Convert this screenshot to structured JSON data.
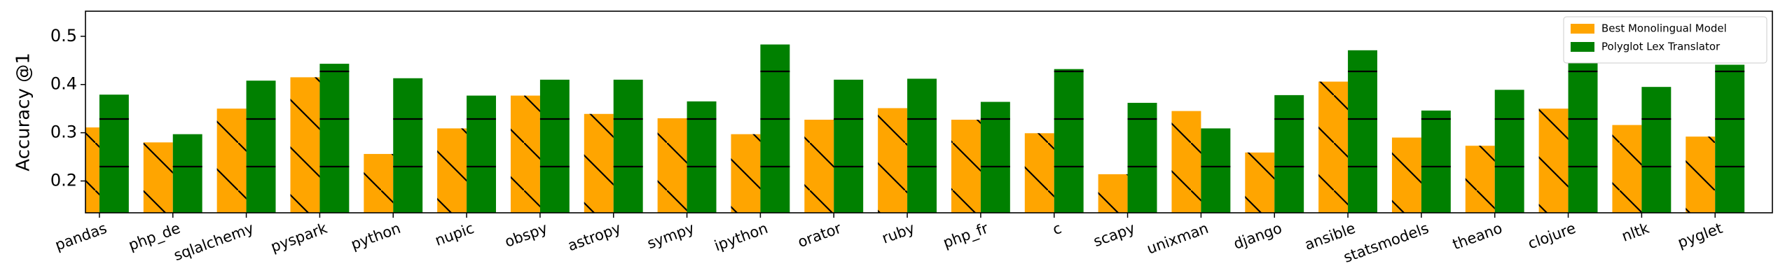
{
  "chart_data": {
    "type": "bar",
    "y_label": "Accuracy @1",
    "categories": [
      "pandas",
      "php_de",
      "sqlalchemy",
      "pyspark",
      "python",
      "nupic",
      "obspy",
      "astropy",
      "sympy",
      "ipython",
      "orator",
      "ruby",
      "php_fr",
      "c",
      "scapy",
      "unixman",
      "django",
      "ansible",
      "statsmodels",
      "theano",
      "clojure",
      "nltk",
      "pyglet"
    ],
    "series": [
      {
        "name": "Best Monolingual Model",
        "color": "#ffa500",
        "hatch": "\\",
        "values": [
          0.311,
          0.28,
          0.35,
          0.415,
          0.256,
          0.309,
          0.377,
          0.339,
          0.33,
          0.297,
          0.327,
          0.351,
          0.327,
          0.299,
          0.214,
          0.345,
          0.259,
          0.406,
          0.29,
          0.273,
          0.35,
          0.316,
          0.292
        ]
      },
      {
        "name": "Polyglot Lex Translator",
        "color": "#008000",
        "hatch": "-",
        "values": [
          0.379,
          0.297,
          0.408,
          0.443,
          0.413,
          0.377,
          0.41,
          0.41,
          0.365,
          0.483,
          0.41,
          0.412,
          0.364,
          0.432,
          0.362,
          0.309,
          0.378,
          0.471,
          0.346,
          0.389,
          0.446,
          0.395,
          0.441
        ]
      }
    ],
    "ylim": [
      0.134,
      0.552
    ],
    "yticks": [
      0.2,
      0.3,
      0.4,
      0.5
    ],
    "legend": "upper right"
  }
}
